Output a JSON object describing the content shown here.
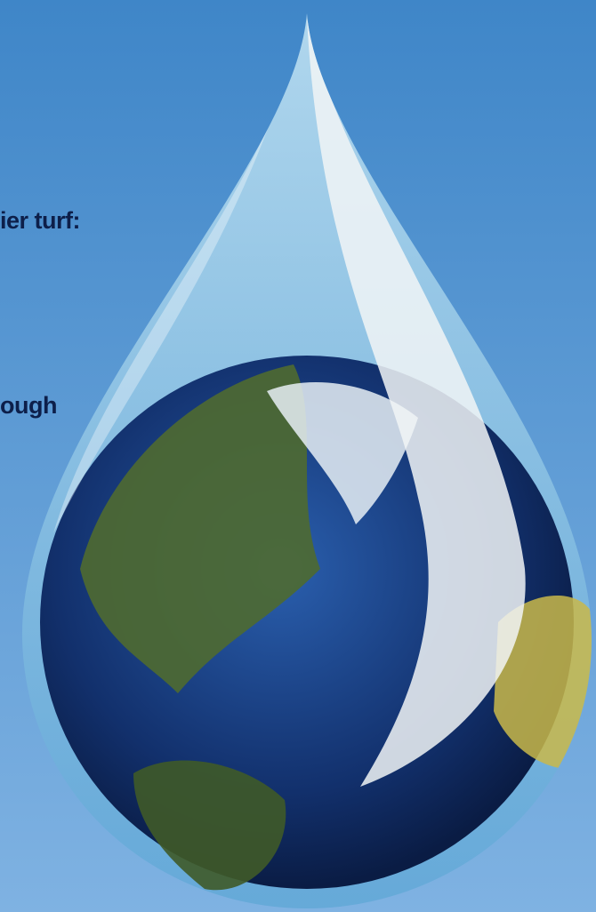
{
  "texts": [
    "ier turf:",
    "ough"
  ]
}
